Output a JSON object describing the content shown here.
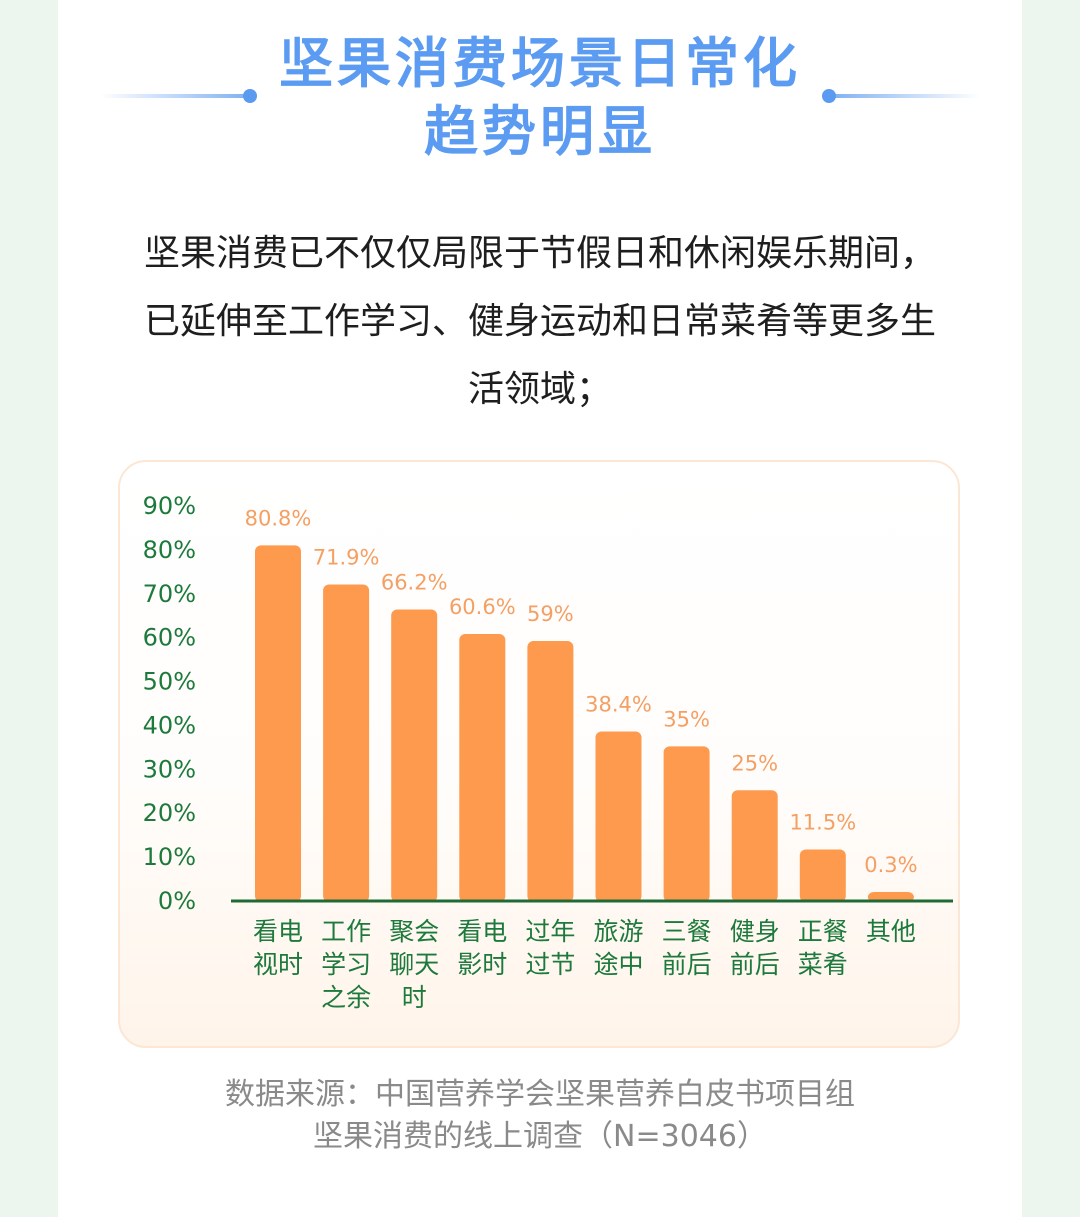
{
  "header": {
    "title_line1": "坚果消费场景日常化",
    "title_line2": "趋势明显"
  },
  "intro": {
    "line1": "坚果消费已不仅仅局限于节假日和休闲娱乐期间，",
    "line2": "已延伸至工作学习、健身运动和日常菜肴等更多生",
    "line3": "活领域；"
  },
  "colors": {
    "title": "#5b9cf2",
    "bar": "#fd9a4e",
    "value_label": "#f4a064",
    "axis_text": "#1d7a3c",
    "axis_line": "#1f6b35",
    "source_text": "#8a8a8a"
  },
  "chart_data": {
    "type": "bar",
    "categories": [
      [
        "看电",
        "视时"
      ],
      [
        "工作",
        "学习",
        "之余"
      ],
      [
        "聚会",
        "聊天",
        "时"
      ],
      [
        "看电",
        "影时"
      ],
      [
        "过年",
        "过节"
      ],
      [
        "旅游",
        "途中"
      ],
      [
        "三餐",
        "前后"
      ],
      [
        "健身",
        "前后"
      ],
      [
        "正餐",
        "菜肴"
      ],
      [
        "其他"
      ]
    ],
    "values": [
      80.8,
      71.9,
      66.2,
      60.6,
      59,
      38.4,
      35,
      25,
      11.5,
      0.3
    ],
    "value_labels": [
      "80.8%",
      "71.9%",
      "66.2%",
      "60.6%",
      "59%",
      "38.4%",
      "35%",
      "25%",
      "11.5%",
      "0.3%"
    ],
    "y_ticks": [
      "0%",
      "10%",
      "20%",
      "30%",
      "40%",
      "50%",
      "60%",
      "70%",
      "80%",
      "90%"
    ],
    "ylim": [
      0,
      90
    ],
    "grid": false,
    "legend": "none"
  },
  "source": {
    "line1": "数据来源：中国营养学会坚果营养白皮书项目组",
    "line2": "坚果消费的线上调查（N=3046）"
  }
}
